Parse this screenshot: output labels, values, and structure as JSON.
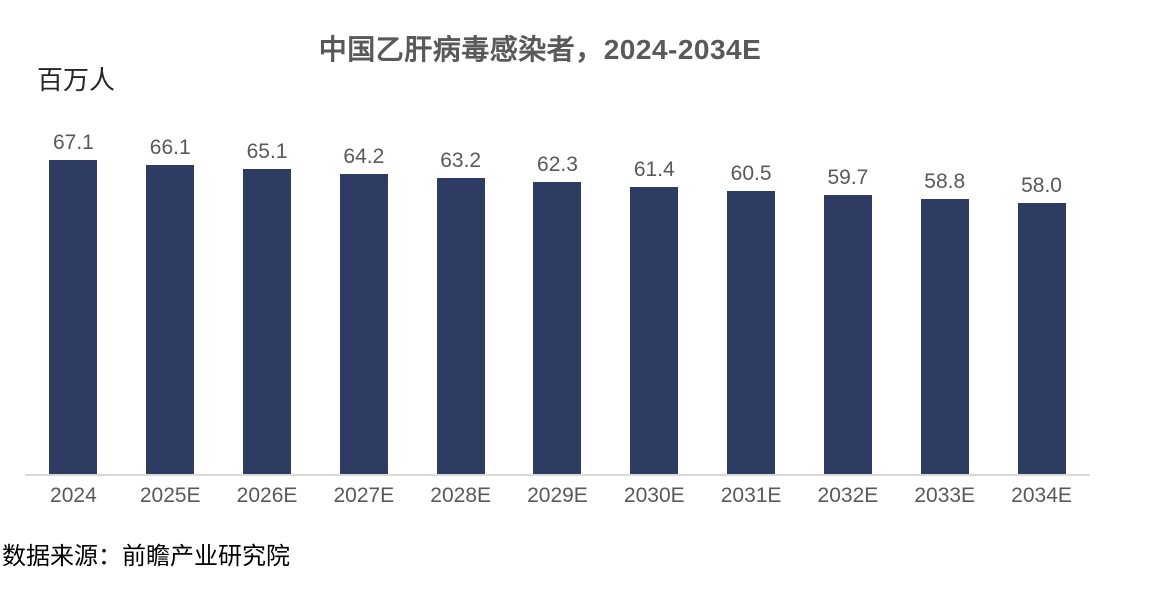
{
  "chart_data": {
    "type": "bar",
    "title": "中国乙肝病毒感染者，2024-2034E",
    "ylabel": "百万人",
    "xlabel": "",
    "categories": [
      "2024",
      "2025E",
      "2026E",
      "2027E",
      "2028E",
      "2029E",
      "2030E",
      "2031E",
      "2032E",
      "2033E",
      "2034E"
    ],
    "values": [
      67.1,
      66.1,
      65.1,
      64.2,
      63.2,
      62.3,
      61.4,
      60.5,
      59.7,
      58.8,
      58.0
    ],
    "ylim": [
      0,
      70
    ],
    "grid": false,
    "legend": false,
    "data_labels": true,
    "bar_color": "#2e3b63",
    "label_color": "#595959",
    "axis_line_color": "#d9d9d9"
  },
  "source": {
    "text": "数据来源：前瞻产业研究院"
  }
}
